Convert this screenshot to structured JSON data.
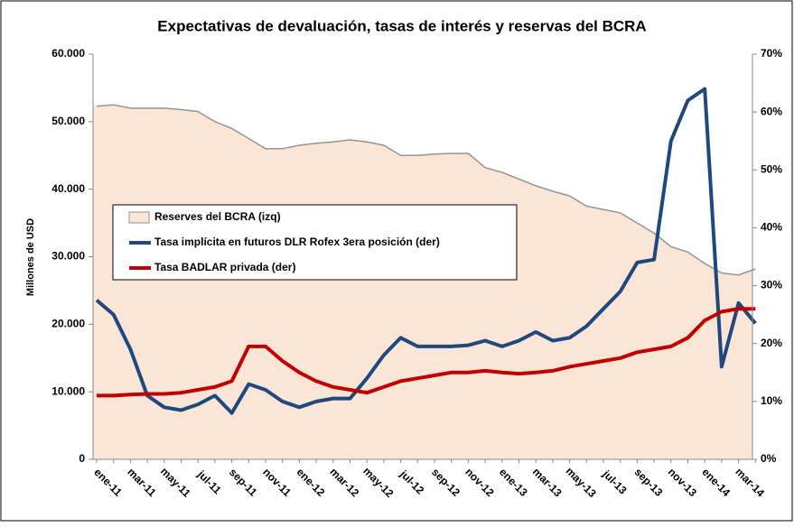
{
  "chart_data": {
    "type": "line",
    "title": "Expectativas de devaluación, tasas de interés y reservas del BCRA",
    "y_label": "Millones de USD",
    "categories": [
      "ene-11",
      null,
      "mar-11",
      null,
      "may-11",
      null,
      "jul-11",
      null,
      "sep-11",
      null,
      "nov-11",
      null,
      "ene-12",
      null,
      "mar-12",
      null,
      "may-12",
      null,
      "jul-12",
      null,
      "sep-12",
      null,
      "nov-12",
      null,
      "ene-13",
      null,
      "mar-13",
      null,
      "may-13",
      null,
      "jul-13",
      null,
      "sep-13",
      null,
      "nov-13",
      null,
      "ene-14",
      null,
      "mar-14",
      null
    ],
    "series": [
      {
        "name": "Reserves del BCRA (izq)",
        "kind": "area",
        "axis": "y",
        "color": "#fbe5d6",
        "line_color": "#959595",
        "values": [
          52300,
          52500,
          52000,
          52000,
          52000,
          51800,
          51500,
          50000,
          49000,
          47500,
          46000,
          46000,
          46500,
          46800,
          47000,
          47300,
          47000,
          46500,
          45000,
          45000,
          45200,
          45300,
          45300,
          43200,
          42500,
          41500,
          40500,
          39700,
          39000,
          37500,
          37000,
          36500,
          35000,
          33500,
          31500,
          30700,
          29000,
          27600,
          27300,
          28200
        ]
      },
      {
        "name": "Tasa implícita en futuros DLR Rofex 3era posición (der)",
        "kind": "line",
        "axis": "y2",
        "color": "#1f497d",
        "values": [
          27.5,
          25,
          19,
          11,
          9,
          8.5,
          9.5,
          11,
          8,
          13,
          12,
          10,
          9,
          10,
          10.5,
          10.5,
          14,
          18,
          21,
          19.5,
          19.5,
          19.5,
          19.7,
          20.5,
          19.5,
          20.5,
          22,
          20.5,
          21,
          23,
          26,
          29,
          34,
          34.5,
          55,
          62,
          64,
          16,
          27,
          23.5
        ]
      },
      {
        "name": "Tasa BADLAR privada (der)",
        "kind": "line",
        "axis": "y2",
        "color": "#c00000",
        "values": [
          11,
          11,
          11.2,
          11.3,
          11.3,
          11.5,
          12,
          12.5,
          13.5,
          19.5,
          19.5,
          17,
          15,
          13.5,
          12.5,
          12,
          11.5,
          12.5,
          13.5,
          14,
          14.5,
          15,
          15,
          15.3,
          15,
          14.8,
          15,
          15.3,
          16,
          16.5,
          17,
          17.5,
          18.5,
          19,
          19.5,
          21,
          24,
          25.5,
          26,
          26
        ]
      }
    ],
    "ylim": [
      0,
      60000
    ],
    "yticks": [
      0,
      {
        "value": 10000,
        "label": "10.000"
      },
      {
        "value": 20000,
        "label": "20.000"
      },
      {
        "value": 30000,
        "label": "30.000"
      },
      {
        "value": 40000,
        "label": "40.000"
      },
      {
        "value": 50000,
        "label": "50.000"
      },
      {
        "value": 60000,
        "label": "60.000"
      }
    ],
    "y2lim": [
      0,
      70
    ],
    "y2ticks": [
      {
        "value": 0,
        "label": "0%"
      },
      {
        "value": 10,
        "label": "10%"
      },
      {
        "value": 20,
        "label": "20%"
      },
      {
        "value": 30,
        "label": "30%"
      },
      {
        "value": 40,
        "label": "40%"
      },
      {
        "value": 50,
        "label": "50%"
      },
      {
        "value": 60,
        "label": "60%"
      },
      {
        "value": 70,
        "label": "70%"
      }
    ],
    "legend": "left",
    "grid": false
  }
}
